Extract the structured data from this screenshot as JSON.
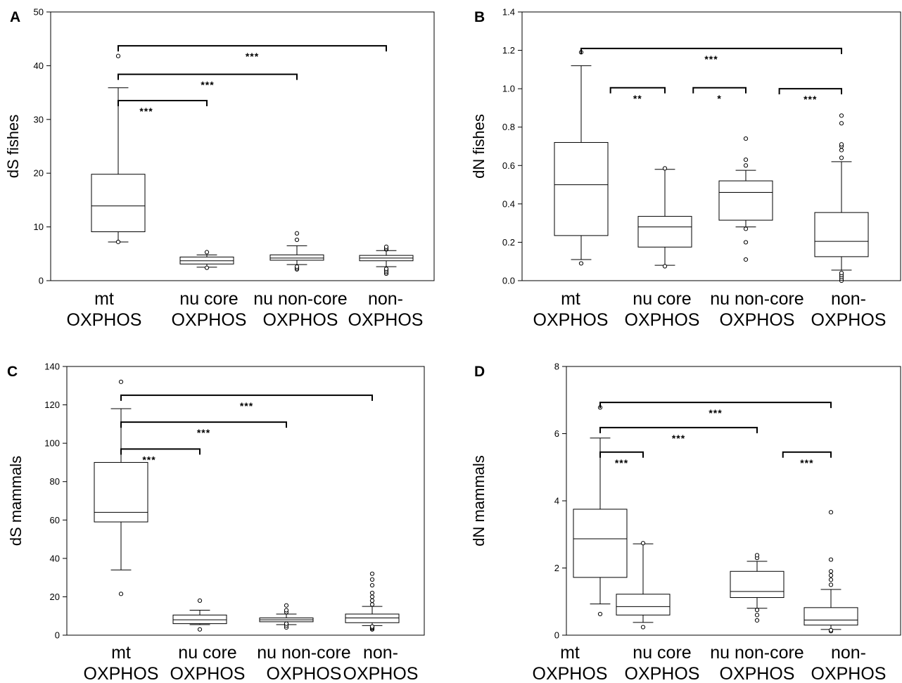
{
  "chart_data": [
    {
      "panel": "A",
      "type": "boxplot",
      "ylabel": "dS fishes",
      "ylim": [
        0,
        50
      ],
      "yticks": [
        "0",
        "10",
        "20",
        "30",
        "40",
        "50"
      ],
      "categories": [
        [
          "mt",
          "OXPHOS"
        ],
        [
          "nu core",
          "OXPHOS"
        ],
        [
          "nu non-core",
          "OXPHOS"
        ],
        [
          "non-",
          "OXPHOS"
        ]
      ],
      "boxes": [
        {
          "whisker_low": 7.2,
          "q1": 9.1,
          "median": 13.9,
          "q3": 19.8,
          "whisker_high": 35.9,
          "outliers": [
            41.8,
            7.2
          ]
        },
        {
          "whisker_low": 2.5,
          "q1": 3.1,
          "median": 3.7,
          "q3": 4.4,
          "whisker_high": 4.8,
          "outliers": [
            2.4,
            5.3
          ]
        },
        {
          "whisker_low": 3.0,
          "q1": 3.8,
          "median": 4.2,
          "q3": 4.8,
          "whisker_high": 6.5,
          "outliers": [
            2.1,
            2.3,
            2.6,
            7.6,
            8.8
          ]
        },
        {
          "whisker_low": 2.6,
          "q1": 3.7,
          "median": 4.2,
          "q3": 4.7,
          "whisker_high": 5.6,
          "outliers": [
            1.3,
            1.6,
            1.9,
            2.2,
            5.8,
            6.0,
            6.3
          ]
        }
      ],
      "brackets": [
        {
          "from": 0,
          "to": 3,
          "y": 43.7,
          "label": "***"
        },
        {
          "from": 0,
          "to": 2,
          "y": 38.4,
          "label": "***"
        },
        {
          "from": 0,
          "to": 1,
          "y": 33.5,
          "label": "***"
        }
      ]
    },
    {
      "panel": "B",
      "type": "boxplot",
      "ylabel": "dN fishes",
      "ylim": [
        0,
        1.4
      ],
      "yticks": [
        "0.0",
        "0.2",
        "0.4",
        "0.6",
        "0.8",
        "1.0",
        "1.2",
        "1.4"
      ],
      "categories": [
        [
          "mt",
          "OXPHOS"
        ],
        [
          "nu core",
          "OXPHOS"
        ],
        [
          "nu non-core",
          "OXPHOS"
        ],
        [
          "non-",
          "OXPHOS"
        ]
      ],
      "boxes": [
        {
          "whisker_low": 0.11,
          "q1": 0.235,
          "median": 0.5,
          "q3": 0.72,
          "whisker_high": 1.12,
          "outliers": [
            0.09,
            1.19
          ]
        },
        {
          "whisker_low": 0.08,
          "q1": 0.175,
          "median": 0.28,
          "q3": 0.335,
          "whisker_high": 0.58,
          "outliers": [
            0.075,
            0.585
          ]
        },
        {
          "whisker_low": 0.28,
          "q1": 0.315,
          "median": 0.46,
          "q3": 0.52,
          "whisker_high": 0.575,
          "outliers": [
            0.11,
            0.2,
            0.27,
            0.6,
            0.63,
            0.74
          ]
        },
        {
          "whisker_low": 0.055,
          "q1": 0.125,
          "median": 0.205,
          "q3": 0.355,
          "whisker_high": 0.62,
          "outliers": [
            0.0,
            0.01,
            0.02,
            0.03,
            0.04,
            0.64,
            0.68,
            0.7,
            0.71,
            0.82,
            0.86
          ]
        }
      ],
      "brackets": [
        {
          "from": 0,
          "to": 3,
          "y": 1.21,
          "label": "***"
        },
        {
          "from": 0.35,
          "to": 1,
          "y": 1.005,
          "label": "**"
        },
        {
          "from": 1.35,
          "to": 2,
          "y": 1.005,
          "label": "*"
        },
        {
          "from": 2.35,
          "to": 3,
          "y": 1.0,
          "label": "***"
        }
      ]
    },
    {
      "panel": "C",
      "type": "boxplot",
      "ylabel": "dS mammals",
      "ylim": [
        0,
        140
      ],
      "yticks": [
        "0",
        "20",
        "40",
        "60",
        "80",
        "100",
        "120",
        "140"
      ],
      "categories": [
        [
          "mt",
          "OXPHOS"
        ],
        [
          "nu core",
          "OXPHOS"
        ],
        [
          "nu non-core",
          "OXPHOS"
        ],
        [
          "non-",
          "OXPHOS"
        ]
      ],
      "boxes": [
        {
          "whisker_low": 34,
          "q1": 59,
          "median": 64,
          "q3": 90,
          "whisker_high": 118,
          "outliers": [
            21.5,
            132
          ]
        },
        {
          "whisker_low": 5.5,
          "q1": 6,
          "median": 8,
          "q3": 10.5,
          "whisker_high": 13,
          "outliers": [
            3,
            18
          ]
        },
        {
          "whisker_low": 5.5,
          "q1": 7,
          "median": 8,
          "q3": 9,
          "whisker_high": 11,
          "outliers": [
            4,
            5,
            6,
            12,
            13,
            15.5
          ]
        },
        {
          "whisker_low": 5,
          "q1": 6.5,
          "median": 9,
          "q3": 11,
          "whisker_high": 15,
          "outliers": [
            3,
            3.5,
            4,
            4.5,
            16,
            18,
            20,
            22,
            26,
            29,
            32
          ]
        }
      ],
      "brackets": [
        {
          "from": 0,
          "to": 3,
          "y": 125,
          "label": "***"
        },
        {
          "from": 0,
          "to": 2,
          "y": 111,
          "label": "***"
        },
        {
          "from": 0,
          "to": 1,
          "y": 97,
          "label": "***"
        }
      ]
    },
    {
      "panel": "D",
      "type": "boxplot",
      "ylabel": "dN mammals",
      "ylim": [
        0,
        8
      ],
      "yticks": [
        "0",
        "2",
        "4",
        "6",
        "8"
      ],
      "categories": [
        [
          "mt",
          "OXPHOS"
        ],
        [
          "nu core",
          "OXPHOS"
        ],
        [
          "nu non-core",
          "OXPHOS"
        ],
        [
          "non-",
          "OXPHOS"
        ]
      ],
      "boxes": [
        {
          "whisker_low": 0.93,
          "q1": 1.72,
          "median": 2.87,
          "q3": 3.75,
          "whisker_high": 5.87,
          "outliers": [
            0.63,
            6.78
          ]
        },
        {
          "whisker_low": 0.38,
          "q1": 0.6,
          "median": 0.85,
          "q3": 1.22,
          "whisker_high": 2.72,
          "outliers": [
            0.24,
            2.74
          ]
        },
        {
          "whisker_low": 0.8,
          "q1": 1.12,
          "median": 1.3,
          "q3": 1.9,
          "whisker_high": 2.2,
          "outliers": [
            0.44,
            0.6,
            0.75,
            2.3,
            2.38
          ]
        },
        {
          "whisker_low": 0.17,
          "q1": 0.3,
          "median": 0.45,
          "q3": 0.82,
          "whisker_high": 1.36,
          "outliers": [
            0.12,
            0.15,
            1.5,
            1.65,
            1.78,
            1.9,
            2.25,
            3.66
          ]
        }
      ],
      "brackets": [
        {
          "from": 0,
          "to": 3,
          "y": 6.93,
          "label": "***"
        },
        {
          "from": 0,
          "to": 2,
          "y": 6.18,
          "label": "***"
        },
        {
          "from": 0,
          "to": 1,
          "y": 5.45,
          "label": "***"
        },
        {
          "from": 2.35,
          "to": 3,
          "y": 5.45,
          "label": "***"
        }
      ]
    }
  ]
}
